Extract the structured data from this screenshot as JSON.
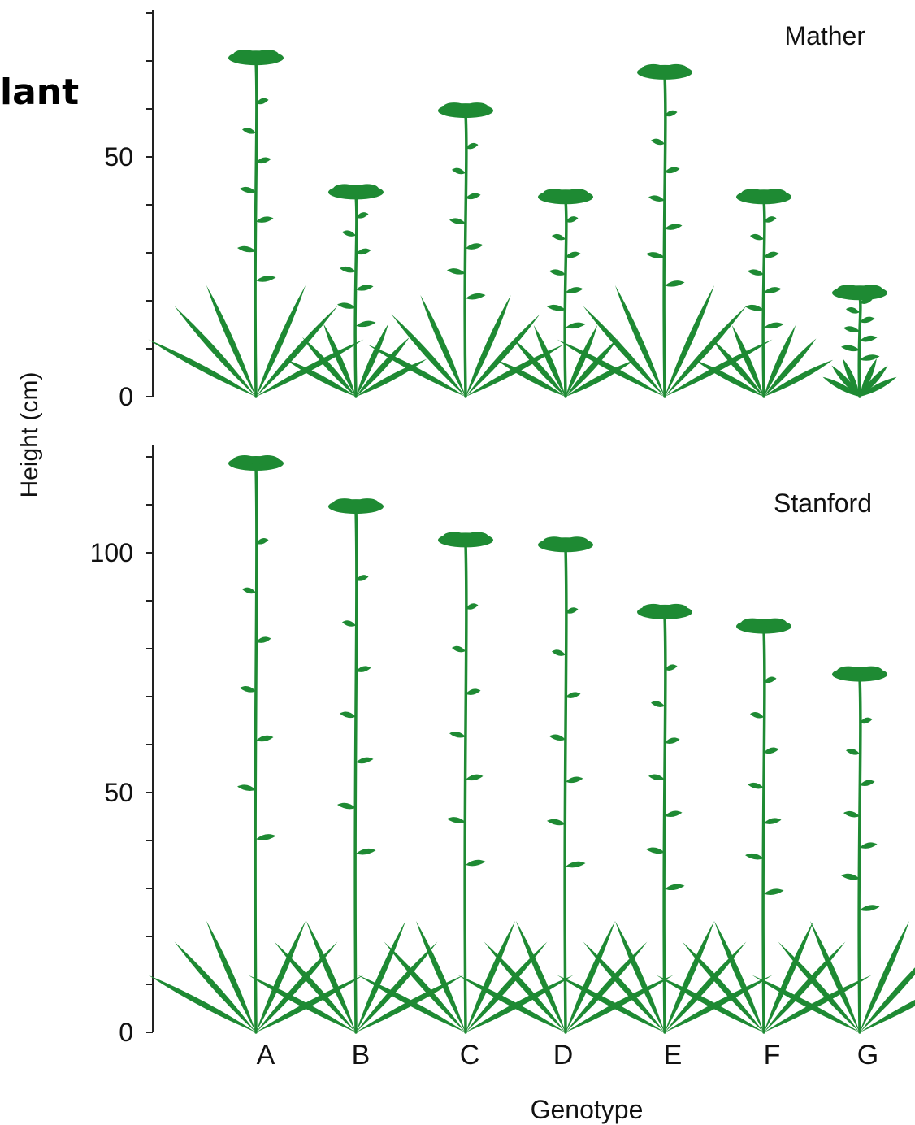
{
  "slide": {
    "title_fragment": "lant"
  },
  "chart_data": {
    "type": "bar",
    "categories": [
      "A",
      "B",
      "C",
      "D",
      "E",
      "F",
      "G"
    ],
    "xlabel": "Genotype",
    "ylabel": "Height (cm)",
    "grid": false,
    "panels": [
      {
        "name": "Mather",
        "ylim": [
          0,
          80
        ],
        "yticks": [
          0,
          50
        ],
        "series": [
          {
            "values": [
              72,
              44,
              61,
              43,
              69,
              43,
              23
            ]
          }
        ]
      },
      {
        "name": "Stanford",
        "ylim": [
          0,
          122
        ],
        "yticks": [
          0,
          50,
          100
        ],
        "series": [
          {
            "values": [
              120,
              111,
              104,
              103,
              89,
              86,
              76
            ]
          }
        ]
      }
    ],
    "colors": {
      "plant": "#1e8a33",
      "axis": "#222222"
    }
  }
}
